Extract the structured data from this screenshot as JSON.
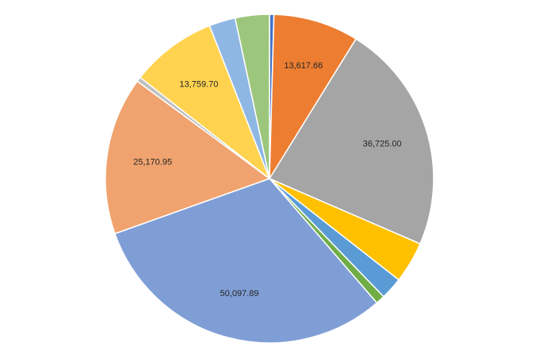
{
  "chart_data": {
    "type": "pie",
    "title": "",
    "start_angle_deg": 0,
    "direction": "clockwise",
    "slices": [
      {
        "value": 700,
        "color": "#4472c4",
        "label": ""
      },
      {
        "value": 13617.66,
        "color": "#ed7d31",
        "label": "13,617.66"
      },
      {
        "value": 36725.0,
        "color": "#a5a5a5",
        "label": "36,725.00"
      },
      {
        "value": 6600,
        "color": "#ffc000",
        "label": ""
      },
      {
        "value": 3550,
        "color": "#5b9bd5",
        "label": ""
      },
      {
        "value": 1450,
        "color": "#70ad47",
        "label": ""
      },
      {
        "value": 50097.89,
        "color": "#7f9ed5",
        "label": "50,097.89"
      },
      {
        "value": 25170.95,
        "color": "#f0a36f",
        "label": "25,170.95"
      },
      {
        "value": 750,
        "color": "#c0c0c0",
        "label": ""
      },
      {
        "value": 13759.7,
        "color": "#ffd350",
        "label": "13,759.70"
      },
      {
        "value": 4200,
        "color": "#8fb7e3",
        "label": ""
      },
      {
        "value": 5450,
        "color": "#9dc67d",
        "label": ""
      }
    ]
  }
}
